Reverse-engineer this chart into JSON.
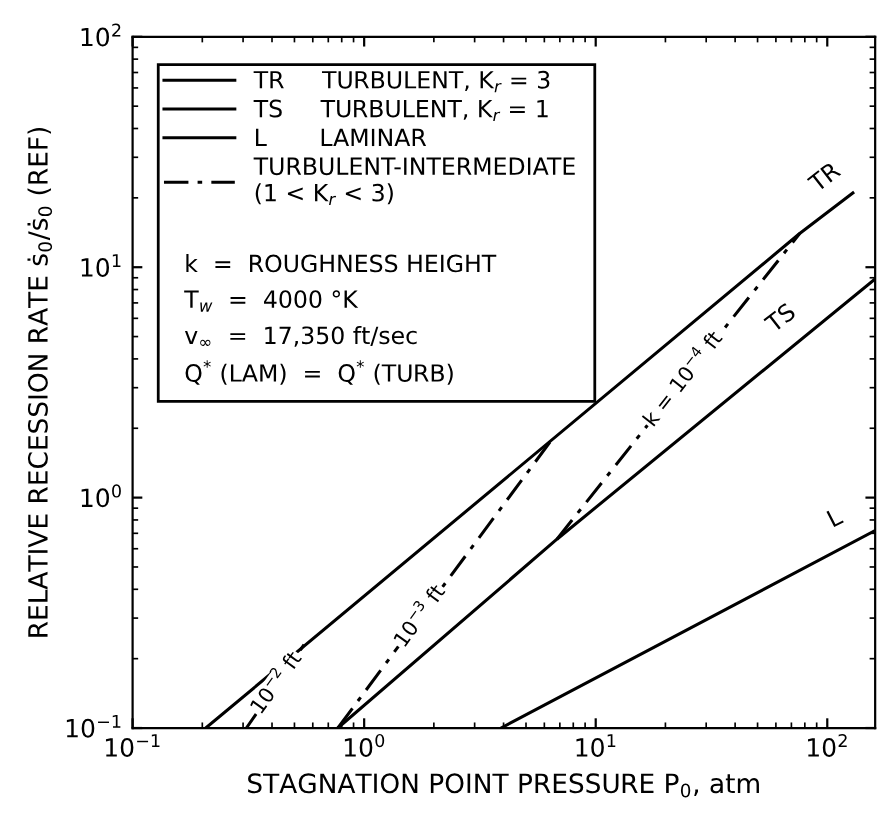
{
  "chart_data": {
    "type": "line",
    "xlabel": "STAGNATION POINT PRESSURE P$_{0}$, atm",
    "ylabel": "RELATIVE RECESSION RATE ṡ$_{0}$/ṡ$_{0}$ (REF)",
    "log": "xy",
    "xlim": [
      0.1,
      161
    ],
    "ylim": [
      0.1,
      100
    ],
    "xticks": [
      {
        "value": 0.1,
        "label": "10$^{−1}$"
      },
      {
        "value": 1,
        "label": "10$^{0}$"
      },
      {
        "value": 10,
        "label": "10$^{1}$"
      },
      {
        "value": 100,
        "label": "10$^{2}$"
      }
    ],
    "yticks": [
      {
        "value": 0.1,
        "label": "10$^{−1}$"
      },
      {
        "value": 1,
        "label": "10$^{0}$"
      },
      {
        "value": 10,
        "label": "10$^{1}$"
      },
      {
        "value": 100,
        "label": "10$^{2}$"
      }
    ],
    "grid": false,
    "legend": "top left",
    "marker": "none",
    "series": [
      {
        "name": "TR     TURBULENT, K$_{r}$ = 3",
        "color": "#000000",
        "line_style": "solid",
        "x": [
          0.207,
          76,
          129
        ],
        "values": [
          0.1,
          14,
          21
        ]
      },
      {
        "name": "TS     TURBULENT, K$_{r}$ = 1",
        "color": "#000000",
        "line_style": "solid",
        "x": [
          0.77,
          6.8,
          161
        ],
        "values": [
          0.1,
          0.66,
          8.9
        ]
      },
      {
        "name": "L       LAMINAR",
        "color": "#000000",
        "line_style": "solid",
        "x": [
          3.9,
          161
        ],
        "values": [
          0.1,
          0.72
        ]
      },
      {
        "name": "TURBULENT-INTERMEDIATE\n(1 < K$_{r}$ < 3)",
        "color": "#000000",
        "line_style": "dashdot",
        "x": [
          0.31,
          0.55
        ],
        "values": [
          0.1,
          0.23
        ]
      },
      {
        "color": "#000000",
        "line_style": "dashdot",
        "x": [
          0.77,
          6.5
        ],
        "values": [
          0.1,
          1.8
        ]
      },
      {
        "color": "#000000",
        "line_style": "dashdot",
        "x": [
          6.8,
          76
        ],
        "values": [
          0.66,
          14
        ]
      }
    ],
    "annotations": [
      "k  =  ROUGHNESS HEIGHT",
      "T$_{w}$  =  4000 °K",
      "v$_{∞}$  =  17,350 ft/sec",
      "Q$^{*}$ (LAM)  =  Q$^{*}$ (TURB)",
      "TR",
      "TS",
      "L",
      {
        "text": "k = 10$^{−4}$ ft",
        "x": 24,
        "y": 3.25
      },
      {
        "text": "10$^{−3}$ ft",
        "x": 1.75,
        "y": 0.304
      },
      {
        "text": "10$^{−2}$ ft",
        "x": 0.42,
        "y": 0.156
      }
    ]
  }
}
